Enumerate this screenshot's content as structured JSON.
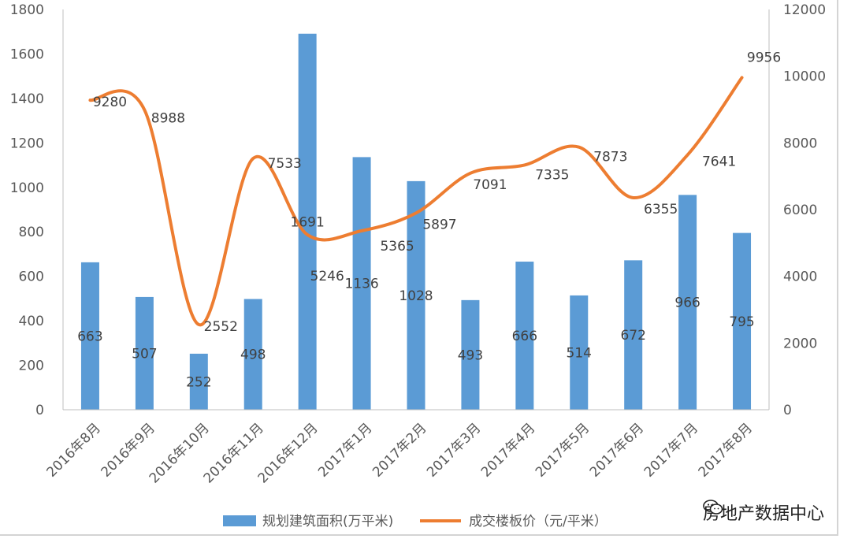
{
  "chart_data": {
    "type": "bar+line",
    "categories": [
      "2016年8月",
      "2016年9月",
      "2016年10月",
      "2016年11月",
      "2016年12月",
      "2017年1月",
      "2017年2月",
      "2017年3月",
      "2017年4月",
      "2017年5月",
      "2017年6月",
      "2017年7月",
      "2017年8月"
    ],
    "series": [
      {
        "name": "规划建筑面积(万平米)",
        "type": "bar",
        "axis": "left",
        "color": "#5b9bd5",
        "values": [
          663,
          507,
          252,
          498,
          1691,
          1136,
          1028,
          493,
          666,
          514,
          672,
          966,
          795
        ]
      },
      {
        "name": "成交楼板价（元/平米）",
        "type": "line",
        "axis": "right",
        "color": "#ed7d31",
        "values": [
          9280,
          8988,
          2552,
          7533,
          5246,
          5365,
          5897,
          7091,
          7335,
          7873,
          6355,
          7641,
          9956
        ]
      }
    ],
    "y_left": {
      "min": 0,
      "max": 1800,
      "ticks": [
        "0",
        "200",
        "400",
        "600",
        "800",
        "1000",
        "1200",
        "1400",
        "1600",
        "1800"
      ]
    },
    "y_right": {
      "min": 0,
      "max": 12000,
      "ticks": [
        "0",
        "2000",
        "4000",
        "6000",
        "8000",
        "10000",
        "12000"
      ]
    },
    "grid": false,
    "legend_position": "bottom"
  },
  "watermark": {
    "icon": "wechat-icon",
    "text": "房地产数据中心"
  }
}
